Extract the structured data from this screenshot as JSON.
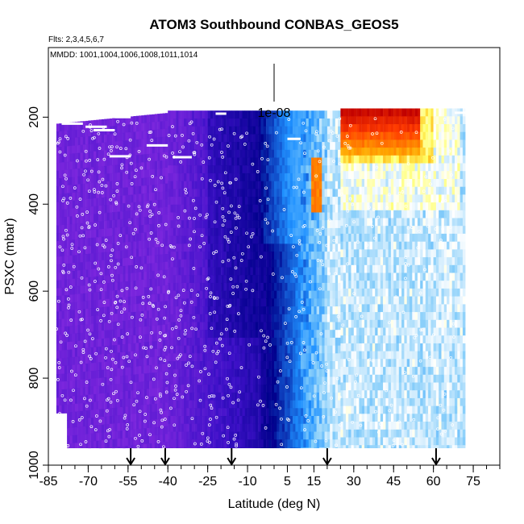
{
  "chart_data": {
    "type": "heatmap",
    "title": "ATOM3 Southbound CONBAS_GEOS5",
    "flights_note": "Flts: 2,3,4,5,6,7",
    "dates_note": "MMDD: 1001,1004,1006,1008,1011,1014",
    "xlabel": "Latitude (deg N)",
    "ylabel": "PSXC (mbar)",
    "xlim": [
      -85,
      85
    ],
    "ylim": [
      1000,
      40
    ],
    "y_reversed": true,
    "x_ticks": [
      "-85",
      "-70",
      "-55",
      "-40",
      "-25",
      "-10",
      "5",
      "15",
      "30",
      "45",
      "60",
      "75"
    ],
    "y_ticks": [
      "200",
      "400",
      "600",
      "800",
      "1000"
    ],
    "scale_bar_label": "1e-08",
    "arrow_latitudes": [
      -54,
      -41,
      -16,
      20,
      61
    ],
    "colormap": [
      "#8a2be2",
      "#3d10c8",
      "#00008b",
      "#1e90ff",
      "#87cefa",
      "#ffffff",
      "#ffff66",
      "#ffa500",
      "#ff3b00",
      "#c00000"
    ],
    "grid": false,
    "legend": "none"
  }
}
